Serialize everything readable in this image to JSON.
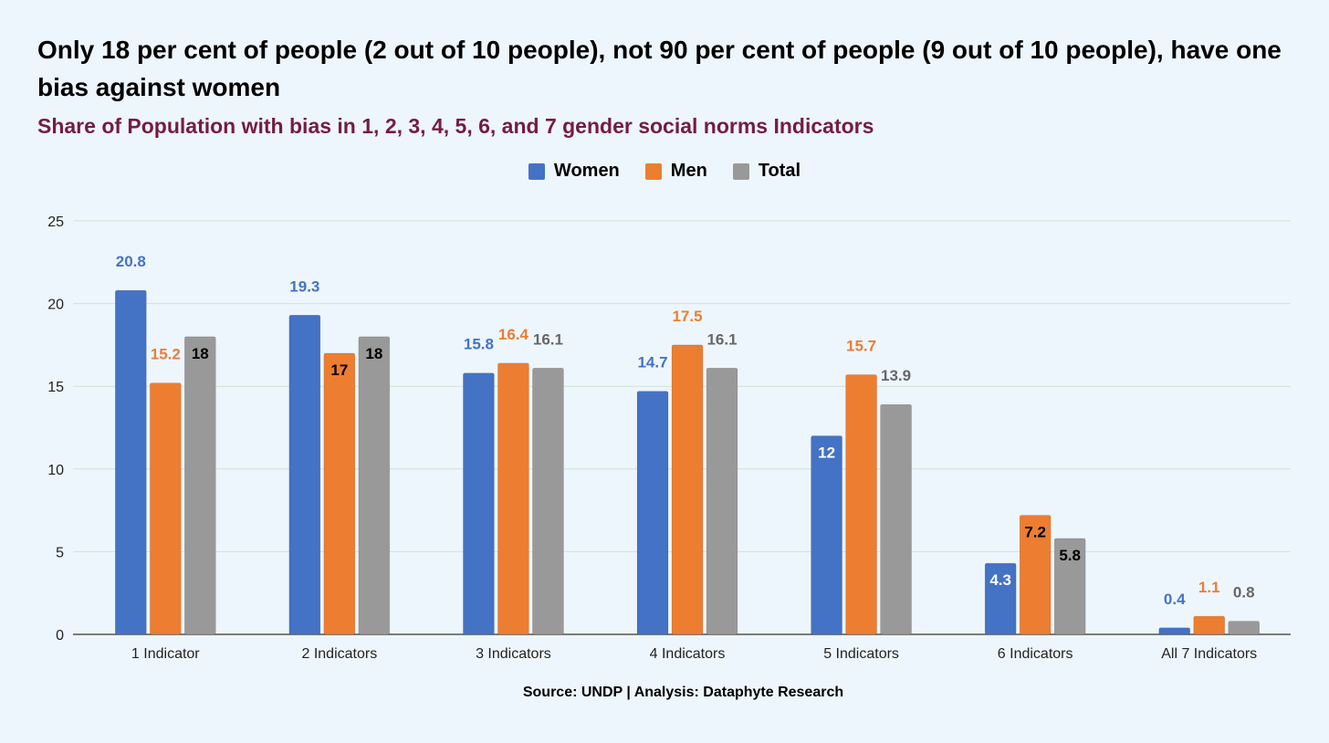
{
  "chart_data": {
    "type": "bar",
    "title": "Only 18 per cent of people (2 out of 10 people), not 90 per cent of people (9 out of 10 people), have one bias against women",
    "subtitle": "Share of Population with bias in 1, 2, 3, 4, 5, 6,  and 7 gender social norms Indicators",
    "categories": [
      "1 Indicator",
      "2 Indicators",
      "3 Indicators",
      "4 Indicators",
      "5 Indicators",
      "6 Indicators",
      "All 7 Indicators"
    ],
    "series": [
      {
        "name": "Women",
        "color": "#4472c4",
        "values": [
          20.8,
          19.3,
          15.8,
          14.7,
          12,
          4.3,
          0.4
        ]
      },
      {
        "name": "Men",
        "color": "#ed7d31",
        "values": [
          15.2,
          17,
          16.4,
          17.5,
          15.7,
          7.2,
          1.1
        ]
      },
      {
        "name": "Total",
        "color": "#999999",
        "values": [
          18,
          18,
          16.1,
          16.1,
          13.9,
          5.8,
          0.8
        ]
      }
    ],
    "ylim": [
      0,
      25
    ],
    "yticks": [
      0,
      5,
      10,
      15,
      20,
      25
    ],
    "grid": true,
    "legend_position": "top-center",
    "xlabel": "",
    "ylabel": ""
  },
  "source": "Source: UNDP | Analysis: Dataphyte Research"
}
